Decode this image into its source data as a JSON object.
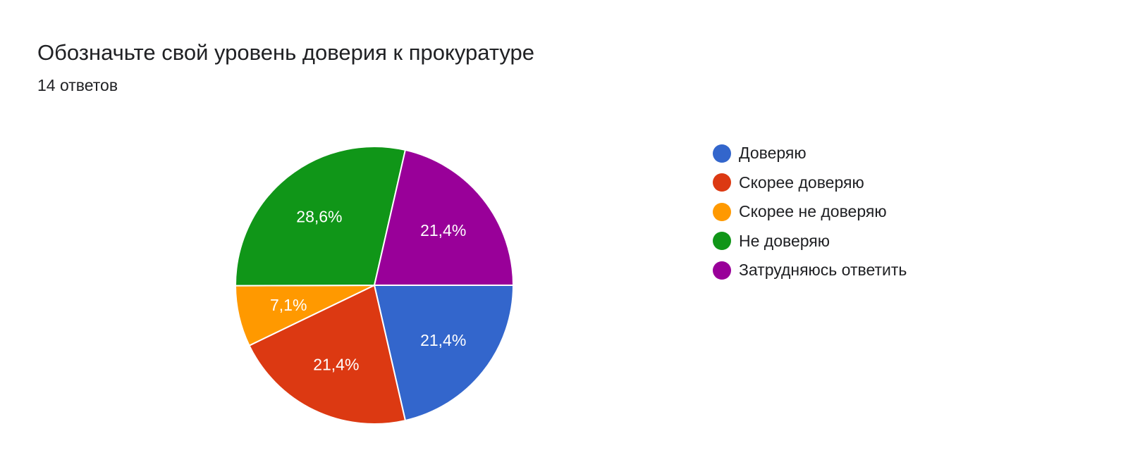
{
  "chart_data": {
    "type": "pie",
    "title": "Обозначьте свой уровень доверия к прокуратуре",
    "subtitle": "14 ответов",
    "slices": [
      {
        "label": "Доверяю",
        "value": 21.4,
        "display": "21,4%",
        "color": "#3366cc"
      },
      {
        "label": "Скорее доверяю",
        "value": 21.4,
        "display": "21,4%",
        "color": "#dc3912"
      },
      {
        "label": "Скорее не доверяю",
        "value": 7.1,
        "display": "7,1%",
        "color": "#ff9900"
      },
      {
        "label": "Не доверяю",
        "value": 28.6,
        "display": "28,6%",
        "color": "#109618"
      },
      {
        "label": "Затрудняюсь ответить",
        "value": 21.4,
        "display": "21,4%",
        "color": "#990099"
      }
    ],
    "legend_placement": "right"
  }
}
